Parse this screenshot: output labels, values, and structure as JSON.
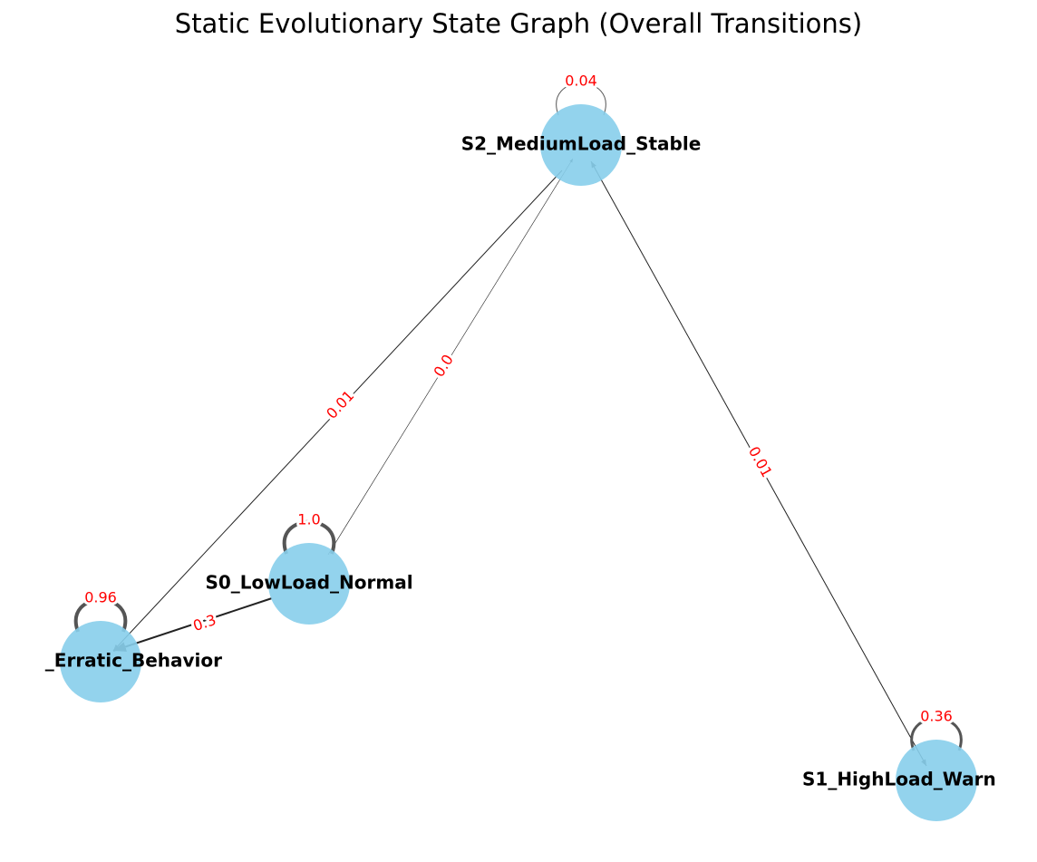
{
  "title": "Static Evolutionary State Graph (Overall Transitions)",
  "nodes": [
    {
      "label": "S2_MediumLoad_Stable"
    },
    {
      "label": "S0_LowLoad_Normal"
    },
    {
      "label": "_Erratic_Behavior"
    },
    {
      "label": "S1_HighLoad_Warn"
    }
  ],
  "edges": [
    {
      "label": "0.04"
    },
    {
      "label": "0.01"
    },
    {
      "label": "0.0"
    },
    {
      "label": "0.01"
    },
    {
      "label": "1.0"
    },
    {
      "label": "0.3"
    },
    {
      "label": "0.96"
    },
    {
      "label": "0.36"
    }
  ]
}
